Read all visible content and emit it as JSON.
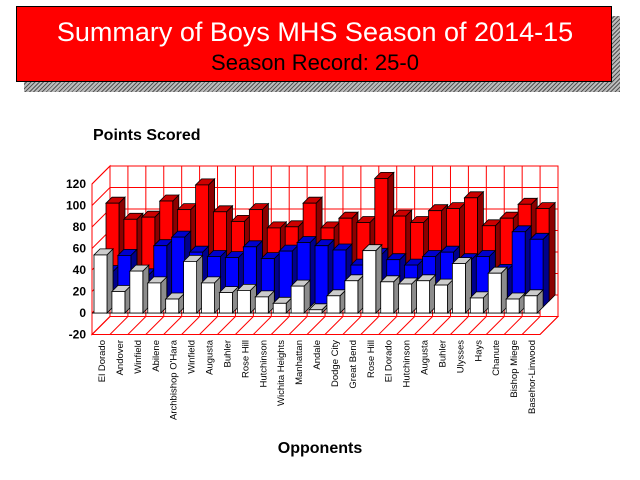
{
  "banner": {
    "title": "Summary of Boys MHS Season of 2014-15",
    "subtitle": "Season Record:  25-0"
  },
  "colors": {
    "banner": "#ff0000",
    "mhs_points": "#ff0000",
    "opponent_points": "#0000ff",
    "margin": "#ffffff",
    "wall_grid": "#ff0000"
  },
  "chart_data": {
    "type": "bar",
    "title": "",
    "xlabel": "Opponents",
    "ylabel": "Points Scored",
    "ylim": [
      -20,
      120
    ],
    "yticks": [
      -20,
      0,
      20,
      40,
      60,
      80,
      100,
      120
    ],
    "grid": true,
    "legend": "none",
    "categories": [
      "El Dorado",
      "Andover",
      "Winfield",
      "Abilene",
      "Archbishop O'Hara",
      "Winfield",
      "Augusta",
      "Buhler",
      "Rose Hill",
      "Hutchinson",
      "Wichita Heights",
      "Manhattan",
      "Andale",
      "Dodge City",
      "Great Bend",
      "Rose Hill",
      "El Dorado",
      "Hutchinson",
      "Augusta",
      "Buhler",
      "Ulysses",
      "Hays",
      "Chanute",
      "Bishop Miege",
      "Basehor-Linwood"
    ],
    "series": [
      {
        "values": [
          54,
          20,
          39,
          28,
          13,
          48,
          28,
          19,
          21,
          15,
          9,
          25,
          3,
          16,
          30,
          58,
          29,
          27,
          30,
          26,
          46,
          14,
          37,
          13,
          16
        ]
      },
      {
        "values": [
          33,
          48,
          30,
          57,
          65,
          51,
          47,
          46,
          56,
          45,
          52,
          60,
          57,
          53,
          39,
          49,
          44,
          39,
          47,
          51,
          44,
          47,
          34,
          70,
          63
        ]
      },
      {
        "values": [
          91,
          76,
          78,
          93,
          85,
          108,
          83,
          74,
          85,
          68,
          69,
          91,
          68,
          77,
          73,
          114,
          79,
          73,
          84,
          86,
          96,
          70,
          77,
          90,
          86
        ]
      }
    ]
  }
}
